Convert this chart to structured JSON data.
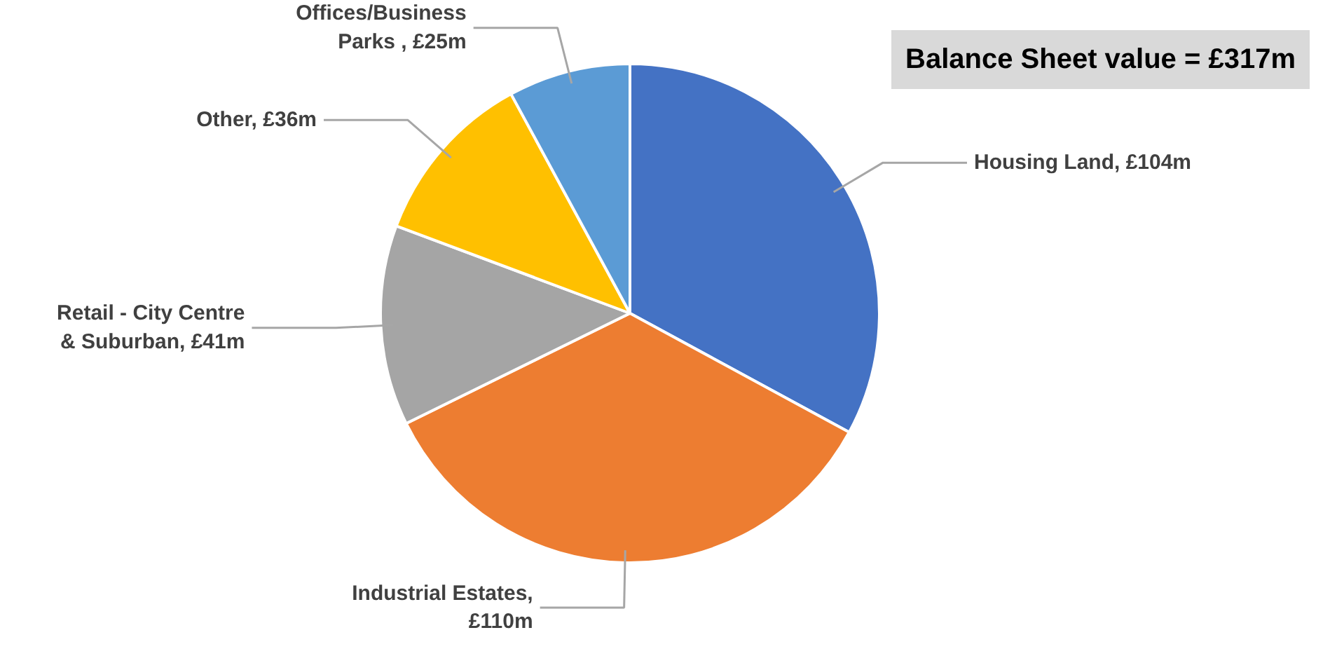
{
  "chart_data": {
    "type": "pie",
    "title": "Balance Sheet value = £317m",
    "categories": [
      "Housing Land, £104m",
      "Industrial Estates, £110m",
      "Retail - City Centre & Suburban, £41m",
      "Other, £36m",
      "Offices/Business Parks , £25m"
    ],
    "values": [
      104,
      110,
      41,
      36,
      25
    ],
    "colors": [
      "#4472c4",
      "#ed7d31",
      "#a5a5a5",
      "#ffc000",
      "#5b9bd5"
    ]
  }
}
